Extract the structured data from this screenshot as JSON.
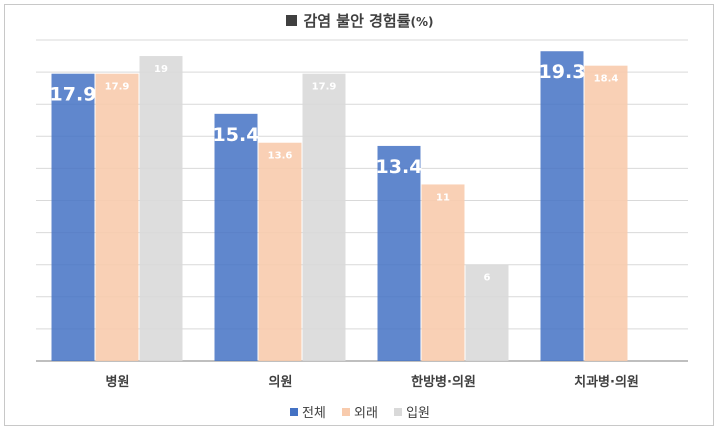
{
  "chart_data": {
    "type": "bar",
    "title": "감염 불안 경험률",
    "title_unit": "(%)",
    "categories": [
      "병원",
      "의원",
      "한방병·의원",
      "치과병·의원"
    ],
    "series": [
      {
        "name": "전체",
        "color": "#4472C4",
        "values": [
          17.9,
          15.4,
          13.4,
          19.3
        ],
        "data_labels": [
          "17.9",
          "15.4",
          "13.4",
          "19.3"
        ]
      },
      {
        "name": "외래",
        "color": "#F8CBAD",
        "values": [
          17.9,
          13.6,
          11,
          18.4
        ],
        "data_labels": [
          "17.9",
          "13.6",
          "11",
          "18.4"
        ]
      },
      {
        "name": "입원",
        "color": "#D9D9D9",
        "values": [
          19,
          17.9,
          6,
          null
        ],
        "data_labels": [
          "19",
          "17.9",
          "6",
          ""
        ]
      }
    ],
    "ylim": [
      0,
      20
    ],
    "y_gridline_step": 2,
    "grid": true,
    "y_tick_labels_shown": false,
    "legend_position": "bottom"
  }
}
